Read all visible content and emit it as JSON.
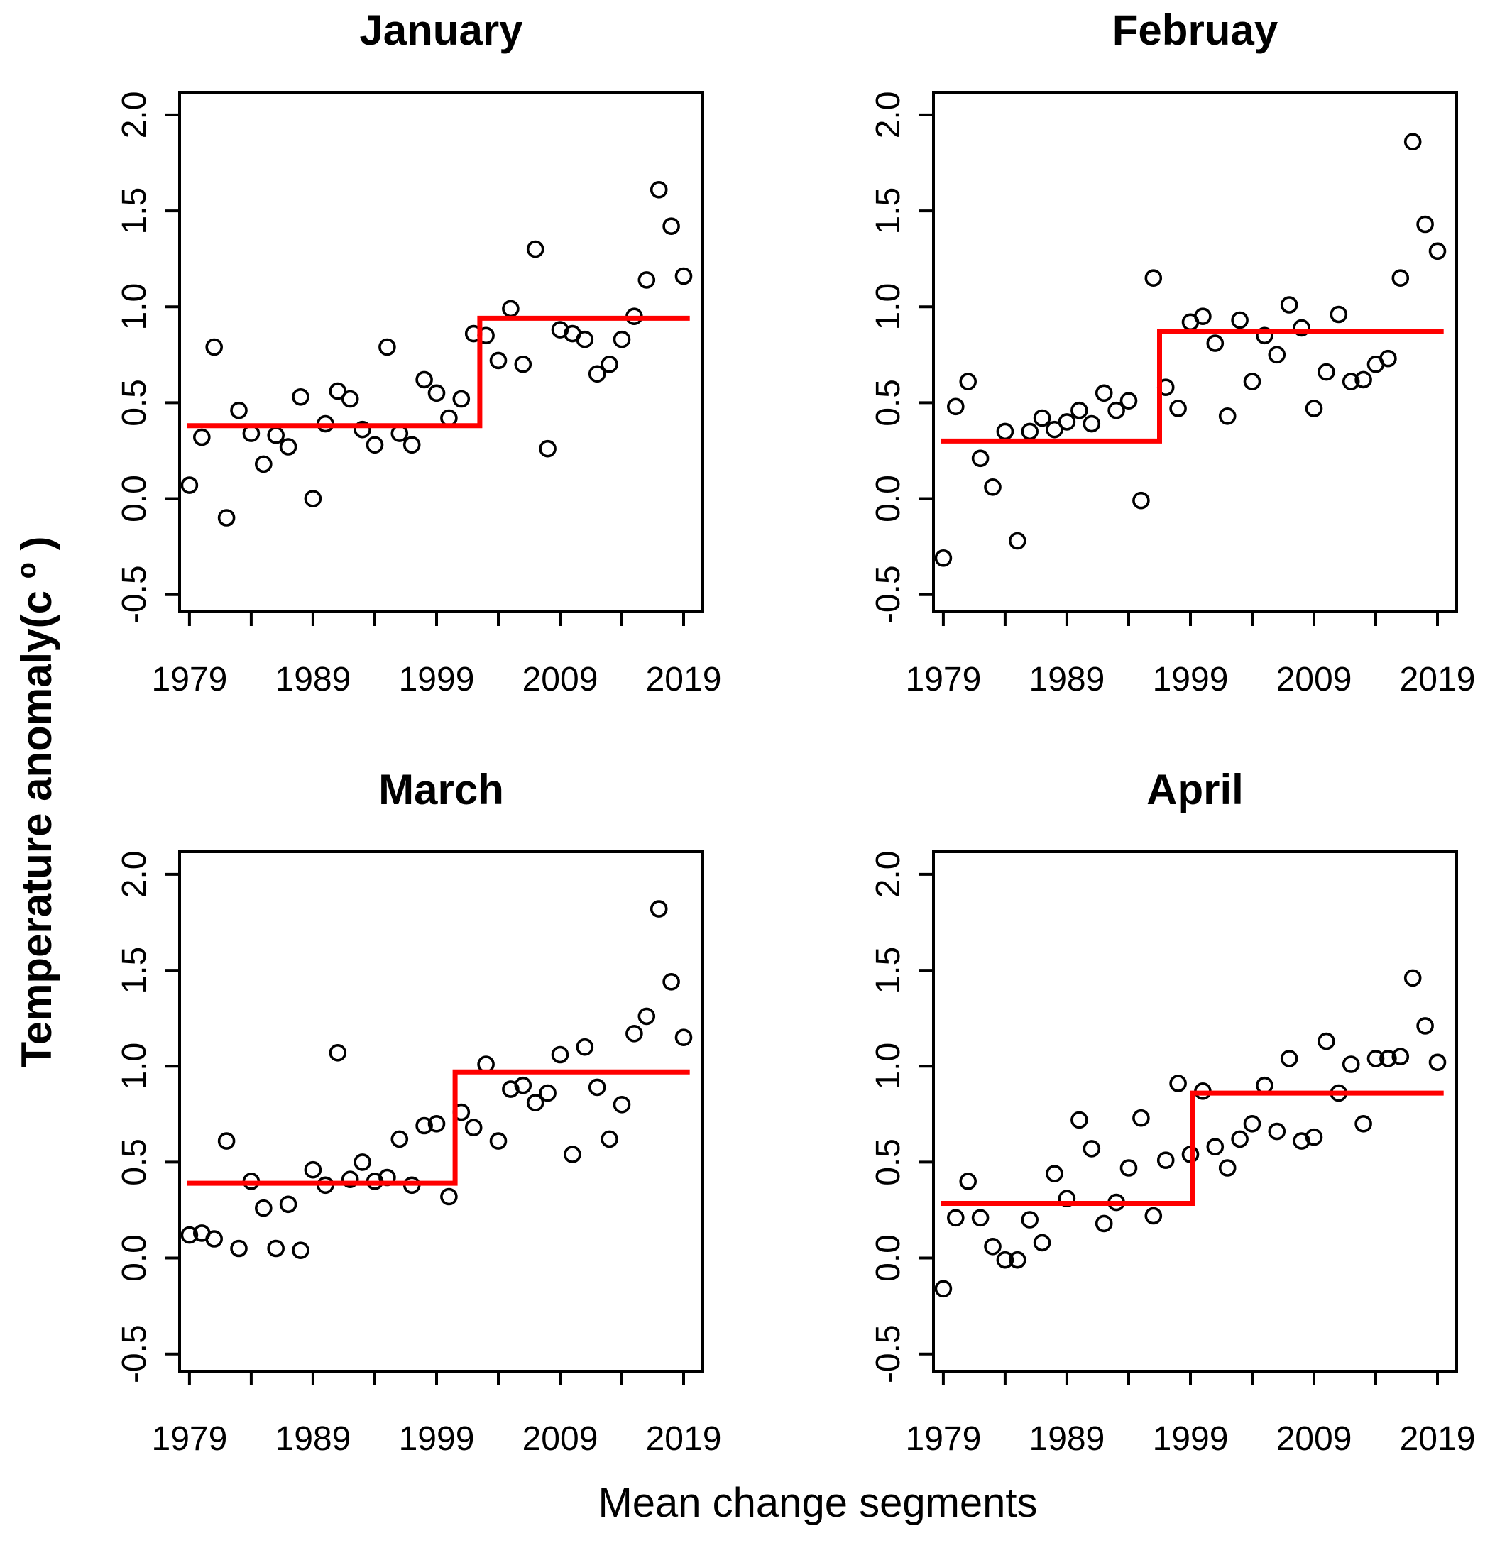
{
  "chart_data": {
    "type": "scatter",
    "figure_kind": "2x2 panel of yearly temperature anomaly scatter plots with fitted mean-change step lines",
    "x_label": "Mean change segments",
    "y_label": {
      "main": "Temperature anomaly(c",
      "superscript": "o",
      "close": ")"
    },
    "x_years": [
      1979,
      1980,
      1981,
      1982,
      1983,
      1984,
      1985,
      1986,
      1987,
      1988,
      1989,
      1990,
      1991,
      1992,
      1993,
      1994,
      1995,
      1996,
      1997,
      1998,
      1999,
      2000,
      2001,
      2002,
      2003,
      2004,
      2005,
      2006,
      2007,
      2008,
      2009,
      2010,
      2011,
      2012,
      2013,
      2014,
      2015,
      2016,
      2017,
      2018,
      2019
    ],
    "axes": {
      "xlim": [
        1978.2,
        2020.55
      ],
      "ylim": [
        -0.59,
        2.118
      ],
      "x_ticks": [
        1979,
        1984,
        1989,
        1994,
        1999,
        2004,
        2009,
        2014,
        2019
      ],
      "x_tick_label_years": [
        1979,
        1989,
        1999,
        2009,
        2019
      ],
      "x_tick_labels": [
        "1979",
        "1989",
        "1999",
        "2009",
        "2019"
      ],
      "y_ticks": [
        -0.5,
        0.0,
        0.5,
        1.0,
        1.5,
        2.0
      ],
      "y_tick_labels": [
        "-0.5",
        "0.0",
        "0.5",
        "1.0",
        "1.5",
        "2.0"
      ],
      "grid": "off",
      "legend": "none"
    },
    "colors": {
      "points": "#000000",
      "step_line": "#FF0000",
      "frame": "#000000",
      "background": "#FFFFFF"
    },
    "subplots": [
      {
        "title": "January",
        "values": [
          0.07,
          0.32,
          0.79,
          -0.1,
          0.46,
          0.34,
          0.18,
          0.33,
          0.27,
          0.53,
          0.0,
          0.39,
          0.56,
          0.52,
          0.36,
          0.28,
          0.79,
          0.34,
          0.28,
          0.62,
          0.55,
          0.42,
          0.52,
          0.86,
          0.85,
          0.72,
          0.99,
          0.7,
          1.3,
          0.26,
          0.88,
          0.86,
          0.83,
          0.65,
          0.7,
          0.83,
          0.95,
          1.14,
          1.61,
          1.42,
          1.16
        ],
        "step_fit": {
          "x_start": 1978.8,
          "break_x": 2002.5,
          "x_end": 2019.5,
          "mean_before": 0.38,
          "mean_after": 0.94
        }
      },
      {
        "title": "Februay",
        "values": [
          -0.31,
          0.48,
          0.61,
          0.21,
          0.06,
          0.35,
          -0.22,
          0.35,
          0.42,
          0.36,
          0.4,
          0.46,
          0.39,
          0.55,
          0.46,
          0.51,
          -0.01,
          1.15,
          0.58,
          0.47,
          0.92,
          0.95,
          0.81,
          0.43,
          0.93,
          0.61,
          0.85,
          0.75,
          1.01,
          0.89,
          0.47,
          0.66,
          0.96,
          0.61,
          0.62,
          0.7,
          0.73,
          1.15,
          1.86,
          1.43,
          1.29
        ],
        "step_fit": {
          "x_start": 1978.8,
          "break_x": 1996.5,
          "x_end": 2019.5,
          "mean_before": 0.3,
          "mean_after": 0.87
        }
      },
      {
        "title": "March",
        "values": [
          0.12,
          0.13,
          0.1,
          0.61,
          0.05,
          0.4,
          0.26,
          0.05,
          0.28,
          0.04,
          0.46,
          0.38,
          1.07,
          0.41,
          0.5,
          0.4,
          0.42,
          0.62,
          0.38,
          0.69,
          0.7,
          0.32,
          0.76,
          0.68,
          1.01,
          0.61,
          0.88,
          0.9,
          0.81,
          0.86,
          1.06,
          0.54,
          1.1,
          0.89,
          0.62,
          0.8,
          1.17,
          1.26,
          1.82,
          1.44,
          1.15
        ],
        "step_fit": {
          "x_start": 1978.8,
          "break_x": 2000.5,
          "x_end": 2019.5,
          "mean_before": 0.39,
          "mean_after": 0.97
        }
      },
      {
        "title": "April",
        "values": [
          -0.16,
          0.21,
          0.4,
          0.21,
          0.06,
          -0.01,
          -0.01,
          0.2,
          0.08,
          0.44,
          0.31,
          0.72,
          0.57,
          0.18,
          0.29,
          0.47,
          0.73,
          0.22,
          0.51,
          0.91,
          0.54,
          0.87,
          0.58,
          0.47,
          0.62,
          0.7,
          0.9,
          0.66,
          1.04,
          0.61,
          0.63,
          1.13,
          0.86,
          1.01,
          0.7,
          1.04,
          1.04,
          1.05,
          1.46,
          1.21,
          1.02
        ],
        "step_fit": {
          "x_start": 1978.8,
          "break_x": 1999.2,
          "x_end": 2019.5,
          "mean_before": 0.285,
          "mean_after": 0.86
        }
      }
    ]
  }
}
